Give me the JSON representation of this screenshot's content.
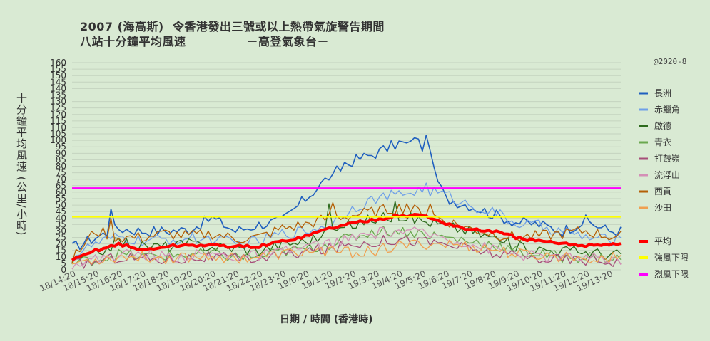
{
  "header": {
    "title_line1": "2007 (海高斯)  令香港發出三號或以上熱帶氣旋警告期間",
    "title_line2": "八站十分鐘平均風速              －高登氣象台－",
    "note": "@2020-8"
  },
  "chart_data": {
    "type": "line",
    "ylabel": "十分鐘平均風速 (公里/小時)",
    "xlabel": "日期 / 時間 (香港時)",
    "ylim": [
      0,
      160
    ],
    "y_ticks": [
      0,
      5,
      10,
      15,
      20,
      25,
      30,
      35,
      40,
      45,
      50,
      55,
      60,
      65,
      70,
      75,
      80,
      85,
      90,
      95,
      100,
      105,
      110,
      115,
      120,
      125,
      130,
      135,
      140,
      145,
      150,
      155,
      160
    ],
    "x_tick_labels": [
      "18/14:20",
      "18/15:20",
      "18/16:20",
      "18/17:20",
      "18/18:20",
      "18/19:20",
      "18/20:20",
      "18/21:20",
      "18/22:20",
      "18/23:20",
      "19/0:20",
      "19/1:20",
      "19/2:20",
      "19/3:20",
      "19/4:20",
      "19/5:20",
      "19/6:20",
      "19/7:20",
      "19/8:20",
      "19/9:20",
      "19/10:20",
      "19/11:20",
      "19/12:20",
      "19/13:20"
    ],
    "legend": {
      "placement": "right"
    },
    "series": [
      {
        "name": "長洲",
        "color": "#1f5fbf",
        "width": 1.6,
        "hourly": [
          17,
          25,
          32,
          30,
          30,
          31,
          40,
          30,
          35,
          38,
          55,
          72,
          84,
          90,
          98,
          95,
          55,
          50,
          43,
          37,
          35,
          30,
          38,
          30
        ],
        "peaks": [
          [
            1.6,
            47
          ],
          [
            11.1,
            74
          ],
          [
            11.6,
            83
          ],
          [
            14.6,
            102
          ],
          [
            14.8,
            101
          ],
          [
            15.2,
            104
          ],
          [
            15.3,
            92
          ]
        ]
      },
      {
        "name": "赤鱲角",
        "color": "#6fa0e8",
        "width": 1.3,
        "hourly": [
          10,
          20,
          25,
          22,
          23,
          24,
          24,
          20,
          22,
          28,
          30,
          35,
          48,
          55,
          58,
          62,
          58,
          50,
          45,
          36,
          34,
          30,
          25,
          23
        ],
        "peaks": [
          [
            15.1,
            67
          ]
        ]
      },
      {
        "name": "啟德",
        "color": "#2e6b1e",
        "width": 1.3,
        "hourly": [
          6,
          12,
          22,
          18,
          18,
          20,
          18,
          17,
          15,
          20,
          22,
          28,
          35,
          40,
          42,
          38,
          34,
          30,
          25,
          18,
          16,
          15,
          14,
          12
        ],
        "peaks": [
          [
            11.0,
            51
          ],
          [
            13.9,
            53
          ]
        ]
      },
      {
        "name": "青衣",
        "color": "#6aa84f",
        "width": 1.3,
        "hourly": [
          5,
          8,
          12,
          10,
          11,
          12,
          12,
          10,
          10,
          14,
          16,
          20,
          25,
          30,
          30,
          28,
          25,
          22,
          20,
          14,
          12,
          10,
          10,
          9
        ],
        "peaks": []
      },
      {
        "name": "打鼓嶺",
        "color": "#a64d79",
        "width": 1.3,
        "hourly": [
          4,
          6,
          10,
          9,
          8,
          9,
          10,
          8,
          9,
          11,
          14,
          16,
          20,
          22,
          24,
          22,
          20,
          16,
          13,
          10,
          9,
          8,
          8,
          7
        ],
        "peaks": []
      },
      {
        "name": "流浮山",
        "color": "#d48fb6",
        "width": 1.3,
        "hourly": [
          5,
          8,
          12,
          12,
          10,
          11,
          12,
          10,
          11,
          13,
          18,
          20,
          24,
          28,
          30,
          28,
          25,
          20,
          16,
          12,
          10,
          9,
          9,
          8
        ],
        "peaks": []
      },
      {
        "name": "西貢",
        "color": "#b45f06",
        "width": 1.3,
        "hourly": [
          8,
          30,
          25,
          25,
          28,
          26,
          28,
          24,
          25,
          32,
          35,
          40,
          42,
          45,
          48,
          45,
          38,
          32,
          28,
          25,
          26,
          28,
          30,
          26
        ],
        "peaks": [
          [
            1.6,
            40
          ],
          [
            11.2,
            52
          ],
          [
            14.3,
            51
          ],
          [
            15.3,
            51
          ]
        ]
      },
      {
        "name": "沙田",
        "color": "#f0a050",
        "width": 1.3,
        "hourly": [
          5,
          8,
          10,
          10,
          9,
          10,
          11,
          9,
          10,
          12,
          14,
          15,
          13,
          15,
          18,
          20,
          20,
          18,
          16,
          12,
          11,
          10,
          10,
          9
        ],
        "peaks": []
      },
      {
        "name": "平均",
        "color": "#ff0000",
        "width": 4,
        "hourly": [
          7,
          15,
          20,
          15,
          18,
          19,
          19,
          18,
          18,
          22,
          26,
          32,
          36,
          39,
          42,
          42,
          36,
          31,
          30,
          25,
          22,
          20,
          19,
          20
        ],
        "peaks": []
      },
      {
        "name": "強風下限",
        "color": "#ffff00",
        "width": 2.5,
        "constant": 41,
        "hourly": [],
        "peaks": []
      },
      {
        "name": "烈風下限",
        "color": "#ff00ff",
        "width": 2.5,
        "constant": 63,
        "hourly": [],
        "peaks": []
      }
    ]
  }
}
